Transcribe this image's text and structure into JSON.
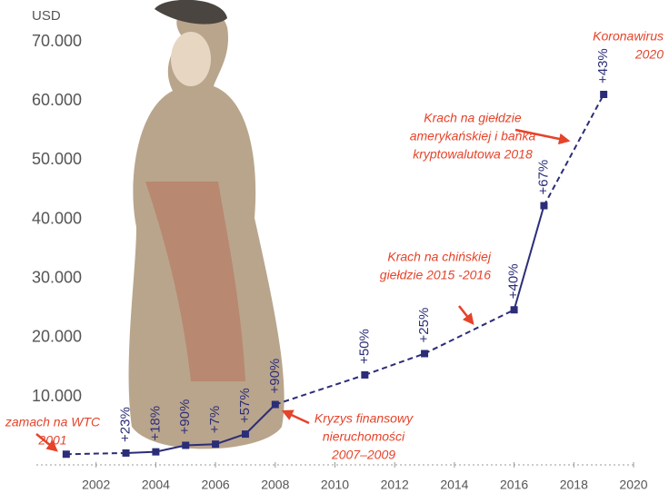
{
  "chart_data": {
    "type": "line",
    "y_axis_label": "USD",
    "x": [
      2001,
      2003,
      2004,
      2005,
      2006,
      2007,
      2008,
      2011,
      2013,
      2016,
      2017,
      2019
    ],
    "series": [
      {
        "color": "#2b2d78",
        "values": [
          300,
          500,
          700,
          1800,
          2000,
          3700,
          8700,
          13700,
          17300,
          24700,
          42300,
          61100
        ]
      }
    ],
    "change_labels": [
      null,
      "+23%",
      "+18%",
      "+90%",
      "+7%",
      "+57%",
      "+90%",
      "+50%",
      "+25%",
      "+40%",
      "+67%",
      "+43%"
    ],
    "segment_dashed": [
      true,
      false,
      false,
      false,
      false,
      false,
      true,
      true,
      true,
      false,
      true
    ],
    "xlim": [
      2000,
      2020
    ],
    "xticks": [
      2002,
      2004,
      2006,
      2008,
      2010,
      2012,
      2014,
      2016,
      2018,
      2020
    ],
    "ylim": [
      -1500,
      70000
    ],
    "yticks": [
      {
        "value": 10000,
        "label": "10.000"
      },
      {
        "value": 20000,
        "label": "20.000"
      },
      {
        "value": 30000,
        "label": "30.000"
      },
      {
        "value": 40000,
        "label": "40.000"
      },
      {
        "value": 50000,
        "label": "50.000"
      },
      {
        "value": 60000,
        "label": "60.000"
      },
      {
        "value": 70000,
        "label": "70.000"
      }
    ],
    "annotations": [
      {
        "lines": [
          "zamach na WTC",
          "2001"
        ]
      },
      {
        "lines": [
          "Kryzys finansowy",
          "nieruchomości",
          "2007–2009"
        ]
      },
      {
        "lines": [
          "Krach na chińskiej",
          "giełdzie 2015 -2016"
        ]
      },
      {
        "lines": [
          "Krach na giełdzie",
          "amerykańskiej i bańka",
          "kryptowalutowa 2018"
        ]
      },
      {
        "lines": [
          "Koronawirus",
          "2020"
        ]
      }
    ]
  }
}
